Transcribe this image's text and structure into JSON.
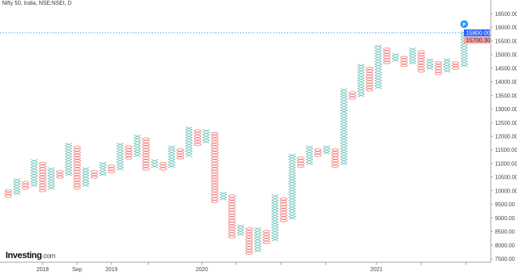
{
  "header": {
    "title": "Nifty 50, India, NSE:NSEI, D"
  },
  "logo": {
    "main": "Investing",
    "suffix": ".com"
  },
  "colors": {
    "x_box": "#26a69a",
    "o_box": "#ef5350",
    "price_line": "#2196f3",
    "last_label_bg": "#2962ff",
    "prev_label_bg": "#f5a3a3",
    "marker": "#2196f3"
  },
  "chart_data": {
    "type": "point-and-figure",
    "box_size": 100,
    "ylim": [
      7500,
      16500
    ],
    "y_ticks": [
      "16500.00",
      "16000.00",
      "15500.00",
      "15000.00",
      "14500.00",
      "14000.00",
      "13500.00",
      "13000.00",
      "12500.00",
      "12000.00",
      "11500.00",
      "11000.00",
      "10500.00",
      "10000.00",
      "9500.00",
      "9000.00",
      "8500.00",
      "8000.00",
      "7500.00"
    ],
    "x_tick_labels": [
      {
        "label": "2018",
        "column": 4
      },
      {
        "label": "Sep",
        "column": 8
      },
      {
        "label": "2019",
        "column": 12
      },
      {
        "label": "2020",
        "column": 22.5
      },
      {
        "label": "2021",
        "column": 42.8
      }
    ],
    "x_minor_tick_columns": [
      16.3,
      26.5,
      31.7,
      36.9,
      48,
      53.2
    ],
    "price_line": {
      "value": 15800,
      "label": "15800.00"
    },
    "prev_close": {
      "value": 15700.3,
      "label": "15700.30"
    },
    "marker": {
      "label": "P"
    },
    "columns": [
      {
        "t": "O",
        "low": 9800,
        "high": 10000
      },
      {
        "t": "X",
        "low": 9900,
        "high": 10400
      },
      {
        "t": "O",
        "low": 10100,
        "high": 10300
      },
      {
        "t": "X",
        "low": 10200,
        "high": 11100
      },
      {
        "t": "O",
        "low": 10000,
        "high": 11000
      },
      {
        "t": "X",
        "low": 10100,
        "high": 10800
      },
      {
        "t": "O",
        "low": 10500,
        "high": 10700
      },
      {
        "t": "X",
        "low": 10600,
        "high": 11700
      },
      {
        "t": "O",
        "low": 10100,
        "high": 11600
      },
      {
        "t": "X",
        "low": 10200,
        "high": 10800
      },
      {
        "t": "O",
        "low": 10500,
        "high": 10700
      },
      {
        "t": "X",
        "low": 10600,
        "high": 11000
      },
      {
        "t": "O",
        "low": 10700,
        "high": 10900
      },
      {
        "t": "X",
        "low": 10800,
        "high": 11700
      },
      {
        "t": "O",
        "low": 11200,
        "high": 11600
      },
      {
        "t": "X",
        "low": 11300,
        "high": 12000
      },
      {
        "t": "O",
        "low": 10800,
        "high": 11900
      },
      {
        "t": "X",
        "low": 10900,
        "high": 11100
      },
      {
        "t": "O",
        "low": 10800,
        "high": 11000
      },
      {
        "t": "X",
        "low": 10900,
        "high": 11600
      },
      {
        "t": "O",
        "low": 11200,
        "high": 11500
      },
      {
        "t": "X",
        "low": 11300,
        "high": 12300
      },
      {
        "t": "O",
        "low": 11700,
        "high": 12200
      },
      {
        "t": "X",
        "low": 11800,
        "high": 12200
      },
      {
        "t": "O",
        "low": 9600,
        "high": 12100
      },
      {
        "t": "X",
        "low": 9700,
        "high": 9900
      },
      {
        "t": "O",
        "low": 8300,
        "high": 9800
      },
      {
        "t": "X",
        "low": 8400,
        "high": 8700
      },
      {
        "t": "O",
        "low": 7700,
        "high": 8600
      },
      {
        "t": "X",
        "low": 7800,
        "high": 8600
      },
      {
        "t": "O",
        "low": 8100,
        "high": 8500
      },
      {
        "t": "X",
        "low": 8200,
        "high": 9800
      },
      {
        "t": "O",
        "low": 8900,
        "high": 9700
      },
      {
        "t": "X",
        "low": 9000,
        "high": 11300
      },
      {
        "t": "O",
        "low": 10900,
        "high": 11200
      },
      {
        "t": "X",
        "low": 11000,
        "high": 11600
      },
      {
        "t": "O",
        "low": 11300,
        "high": 11500
      },
      {
        "t": "X",
        "low": 11400,
        "high": 11600
      },
      {
        "t": "O",
        "low": 10900,
        "high": 11500
      },
      {
        "t": "X",
        "low": 11000,
        "high": 13700
      },
      {
        "t": "O",
        "low": 13400,
        "high": 13600
      },
      {
        "t": "X",
        "low": 13500,
        "high": 14600
      },
      {
        "t": "O",
        "low": 13700,
        "high": 14500
      },
      {
        "t": "X",
        "low": 13800,
        "high": 15300
      },
      {
        "t": "O",
        "low": 14700,
        "high": 15200
      },
      {
        "t": "X",
        "low": 14800,
        "high": 15000
      },
      {
        "t": "O",
        "low": 14600,
        "high": 14900
      },
      {
        "t": "X",
        "low": 14700,
        "high": 15200
      },
      {
        "t": "O",
        "low": 14400,
        "high": 15100
      },
      {
        "t": "X",
        "low": 14500,
        "high": 14800
      },
      {
        "t": "O",
        "low": 14300,
        "high": 14700
      },
      {
        "t": "X",
        "low": 14400,
        "high": 14800
      },
      {
        "t": "O",
        "low": 14500,
        "high": 14700
      },
      {
        "t": "X",
        "low": 14600,
        "high": 15800
      }
    ]
  }
}
